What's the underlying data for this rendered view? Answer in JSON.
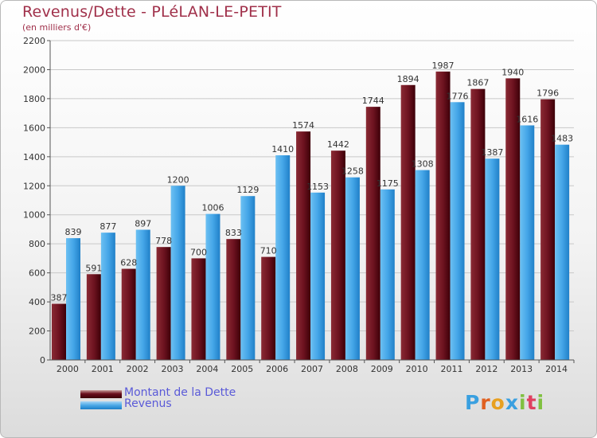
{
  "header": {
    "title": "Revenus/Dette - PLéLAN-LE-PETIT",
    "subtitle": "(en milliers d'€)"
  },
  "legend": {
    "dette_label": "Montant de la Dette",
    "revenus_label": "Revenus"
  },
  "brand": {
    "letters": [
      "P",
      "r",
      "o",
      "x",
      "i",
      "t",
      "i"
    ],
    "colors": [
      "#3aa0e0",
      "#e06020",
      "#e8a020",
      "#3aa0e0",
      "#80c040",
      "#e04060",
      "#80c040"
    ]
  },
  "colors": {
    "dette": "#6e1320",
    "revenus": "#3d9ee0",
    "title": "#a0304a",
    "legend_text": "#5a5ad8"
  },
  "chart_data": {
    "type": "bar",
    "title": "Revenus/Dette - PLéLAN-LE-PETIT",
    "subtitle": "(en milliers d'€)",
    "categories": [
      "2000",
      "2001",
      "2002",
      "2003",
      "2004",
      "2005",
      "2006",
      "2007",
      "2008",
      "2009",
      "2010",
      "2011",
      "2012",
      "2013",
      "2014"
    ],
    "series": [
      {
        "name": "Montant de la Dette",
        "values": [
          387,
          591,
          628,
          778,
          700,
          833,
          710,
          1574,
          1442,
          1744,
          1894,
          1987,
          1867,
          1940,
          1796
        ]
      },
      {
        "name": "Revenus",
        "values": [
          839,
          877,
          897,
          1200,
          1006,
          1129,
          1410,
          1153,
          1258,
          1175,
          1308,
          1776,
          1387,
          1616,
          1483
        ]
      }
    ],
    "yticks": [
      0,
      200,
      400,
      600,
      800,
      1000,
      1200,
      1400,
      1600,
      1800,
      2000,
      2200
    ],
    "ylim": [
      0,
      2200
    ],
    "grid": true,
    "legend_position": "bottom-left"
  }
}
